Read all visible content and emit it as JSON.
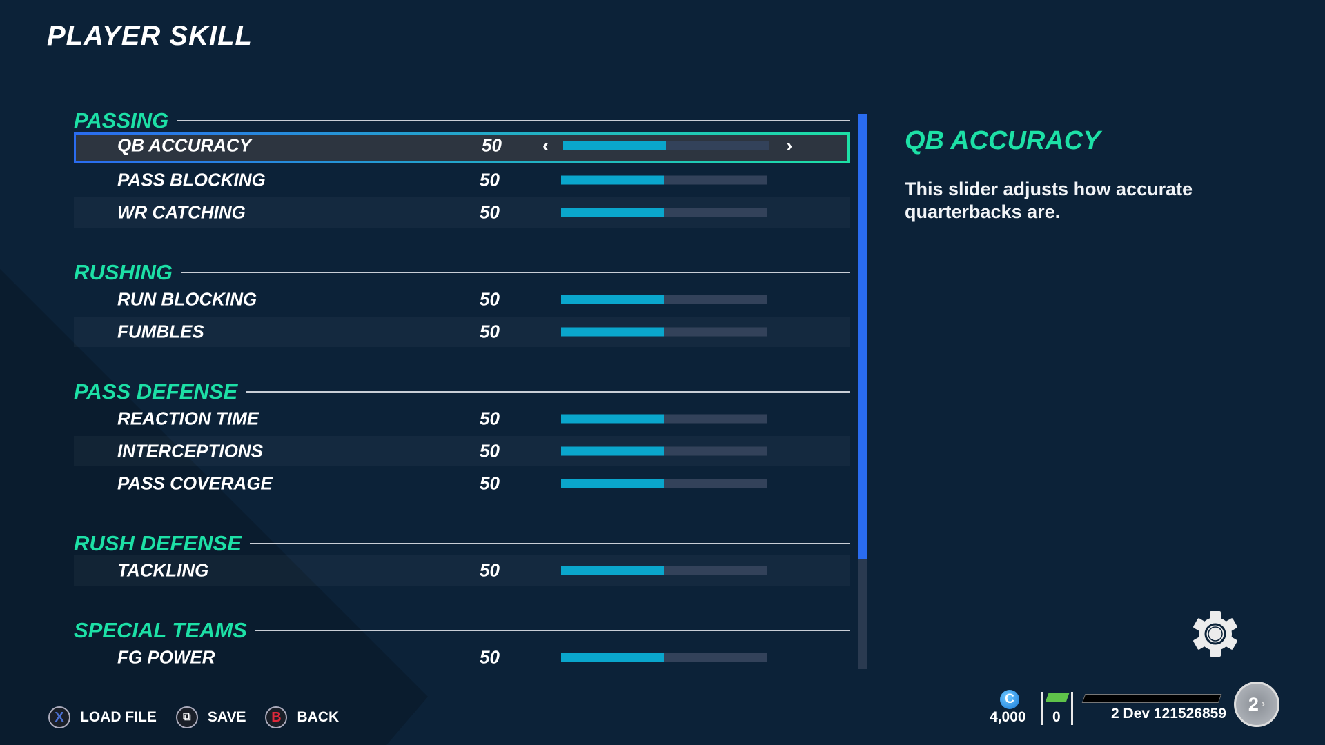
{
  "page_title": "PLAYER SKILL",
  "sections": [
    {
      "name": "PASSING",
      "items": [
        {
          "label": "QB ACCURACY",
          "value": "50",
          "percent": 50,
          "selected": true
        },
        {
          "label": "PASS BLOCKING",
          "value": "50",
          "percent": 50
        },
        {
          "label": "WR CATCHING",
          "value": "50",
          "percent": 50
        }
      ]
    },
    {
      "name": "RUSHING",
      "items": [
        {
          "label": "RUN BLOCKING",
          "value": "50",
          "percent": 50
        },
        {
          "label": "FUMBLES",
          "value": "50",
          "percent": 50
        }
      ]
    },
    {
      "name": "PASS DEFENSE",
      "items": [
        {
          "label": "REACTION TIME",
          "value": "50",
          "percent": 50
        },
        {
          "label": "INTERCEPTIONS",
          "value": "50",
          "percent": 50
        },
        {
          "label": "PASS COVERAGE",
          "value": "50",
          "percent": 50
        }
      ]
    },
    {
      "name": "RUSH DEFENSE",
      "items": [
        {
          "label": "TACKLING",
          "value": "50",
          "percent": 50
        }
      ]
    },
    {
      "name": "SPECIAL TEAMS",
      "items": [
        {
          "label": "FG POWER",
          "value": "50",
          "percent": 50
        }
      ]
    }
  ],
  "detail": {
    "title": "QB ACCURACY",
    "description": "This slider adjusts how accurate quarterbacks are."
  },
  "footer": {
    "buttons": [
      {
        "glyph": "X",
        "label": "LOAD FILE",
        "color": "#4a6fd0"
      },
      {
        "glyph": "⧉",
        "label": "SAVE",
        "color": "#ffffff"
      },
      {
        "glyph": "B",
        "label": "BACK",
        "color": "#e0283a"
      }
    ]
  },
  "status": {
    "coin_glyph": "C",
    "coins": "4,000",
    "cash": "0",
    "gamertag": "2 Dev 121526859",
    "level": "2"
  },
  "colors": {
    "accent": "#1de0a6",
    "selection": "#2a6cf0",
    "slider_fill": "#0aa6cc",
    "background": "#0c2238"
  }
}
